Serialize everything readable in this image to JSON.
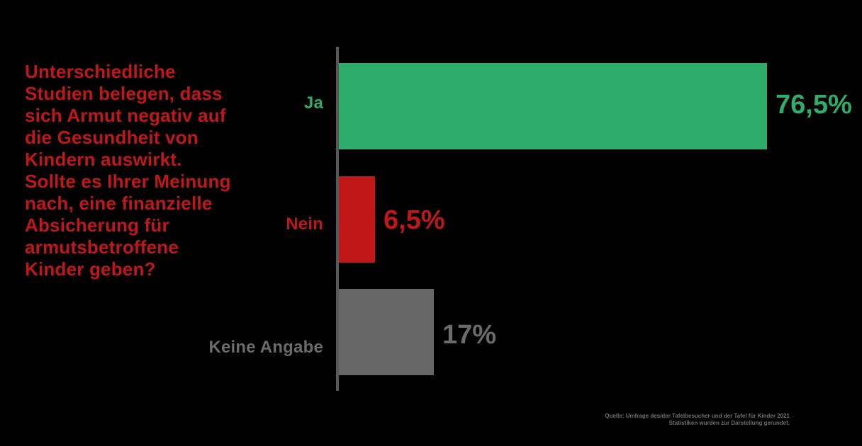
{
  "question": {
    "color": "#C01818",
    "lines": [
      "Unterschiedliche",
      "Studien belegen, dass",
      "sich Armut negativ auf",
      "die Gesundheit von",
      "Kindern auswirkt.",
      "Sollte es Ihrer Meinung",
      "nach, eine finanzielle",
      "Absicherung für",
      "armutsbetroffene",
      "Kinder geben?"
    ]
  },
  "chart_data": {
    "type": "bar",
    "orientation": "horizontal",
    "categories": [
      "Ja",
      "Nein",
      "Keine Angabe"
    ],
    "values": [
      76.5,
      6.5,
      17
    ],
    "value_labels": [
      "76,5%",
      "6,5%",
      "17%"
    ],
    "bar_colors": [
      "#2EAC6A",
      "#C01818",
      "#666666"
    ],
    "label_colors": [
      "#2EAC6A",
      "#C01818",
      "#6B6B6B"
    ],
    "xlim": [
      0,
      100
    ],
    "axis_color": "#58585A",
    "grid": false,
    "legend": false,
    "title": "",
    "xlabel": "",
    "ylabel": ""
  },
  "footer": {
    "color": "#6E6E6E",
    "line1": "Quelle: Umfrage des/der Tafelbesucher und der Tafel für Kinder 2021",
    "line2": "Statistiken wurden zur Darstellung gerundet."
  },
  "background_color": "#000000"
}
